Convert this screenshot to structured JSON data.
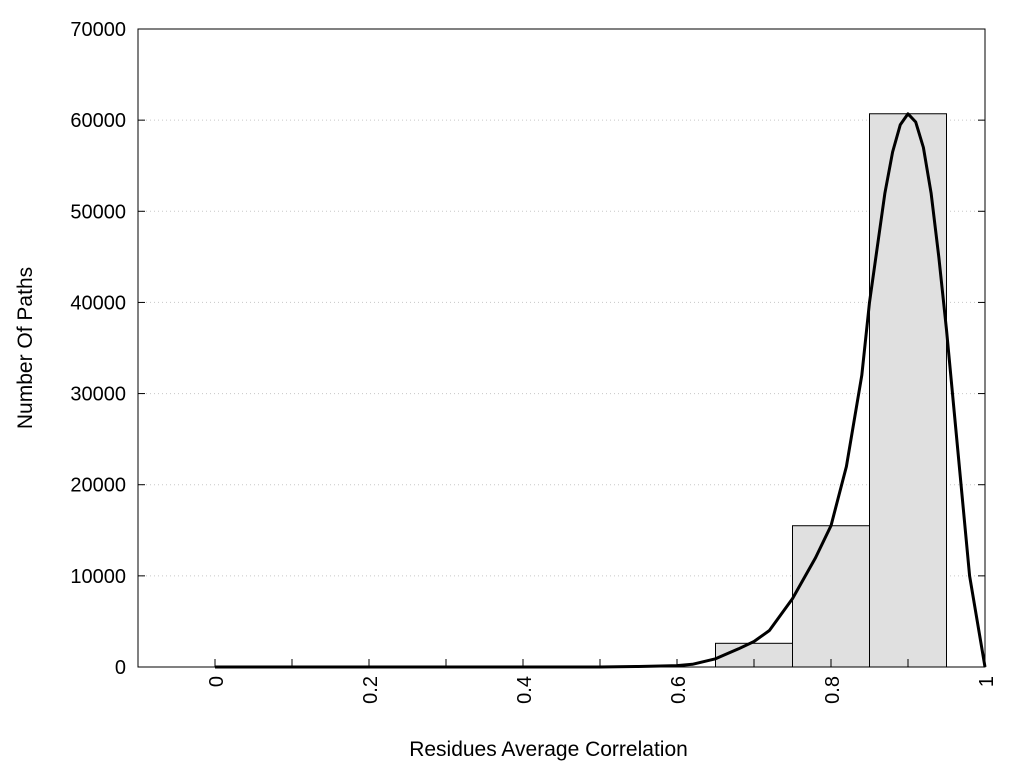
{
  "chart_data": {
    "type": "bar",
    "title": "",
    "xlabel": "Residues Average Correlation",
    "ylabel": "Number Of Paths",
    "xlim": [
      -0.1,
      1.0
    ],
    "ylim": [
      0,
      70000
    ],
    "x_ticks": [
      0,
      0.2,
      0.4,
      0.6,
      0.8,
      1
    ],
    "x_tick_labels": [
      "0",
      "0.2",
      "0.4",
      "0.6",
      "0.8",
      "1"
    ],
    "x_minor_ticks": [
      0.1,
      0.3,
      0.5,
      0.7,
      0.9
    ],
    "y_ticks": [
      0,
      10000,
      20000,
      30000,
      40000,
      50000,
      60000,
      70000
    ],
    "y_tick_labels": [
      "0",
      "10000",
      "20000",
      "30000",
      "40000",
      "50000",
      "60000",
      "70000"
    ],
    "grid": "horizontal dotted",
    "bar_color": "#e0e0e0",
    "bins": [
      {
        "x0": 0.0,
        "x1": 0.1,
        "value": 0
      },
      {
        "x0": 0.1,
        "x1": 0.2,
        "value": 0
      },
      {
        "x0": 0.2,
        "x1": 0.3,
        "value": 0
      },
      {
        "x0": 0.3,
        "x1": 0.4,
        "value": 0
      },
      {
        "x0": 0.4,
        "x1": 0.5,
        "value": 0
      },
      {
        "x0": 0.5,
        "x1": 0.6,
        "value": 0
      },
      {
        "x0": 0.6,
        "x1": 0.65,
        "value": 0
      },
      {
        "x0": 0.65,
        "x1": 0.75,
        "value": 2600
      },
      {
        "x0": 0.75,
        "x1": 0.85,
        "value": 15500
      },
      {
        "x0": 0.85,
        "x1": 0.95,
        "value": 60700
      },
      {
        "x0": 0.95,
        "x1": 1.0,
        "value": 0
      }
    ],
    "fit_curve": {
      "x": [
        0,
        0.5,
        0.55,
        0.6,
        0.62,
        0.65,
        0.68,
        0.7,
        0.72,
        0.75,
        0.78,
        0.8,
        0.82,
        0.84,
        0.85,
        0.86,
        0.87,
        0.88,
        0.89,
        0.9,
        0.91,
        0.92,
        0.93,
        0.94,
        0.95,
        0.96,
        0.97,
        0.98,
        1.0
      ],
      "y": [
        0,
        0,
        50,
        150,
        300,
        900,
        2000,
        2800,
        4000,
        7500,
        12000,
        15500,
        22000,
        32000,
        40000,
        46000,
        52000,
        56500,
        59500,
        60700,
        59800,
        57000,
        52000,
        45000,
        37000,
        28000,
        19000,
        10000,
        0
      ]
    }
  }
}
